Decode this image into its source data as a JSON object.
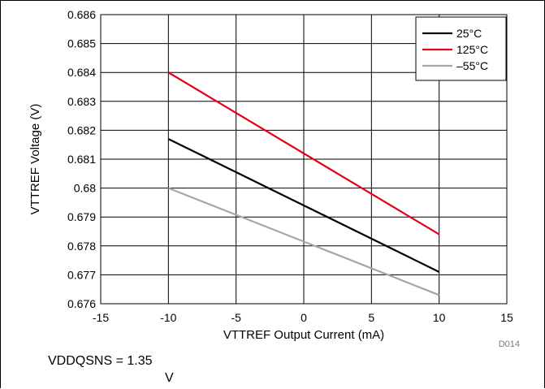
{
  "chart_data": {
    "type": "line",
    "xlabel": "VTTREF Output Current (mA)",
    "ylabel": "VTTREF Voltage (V)",
    "xlim": [
      -15,
      15
    ],
    "ylim": [
      0.676,
      0.686
    ],
    "x_ticks": [
      "-15",
      "-10",
      "-5",
      "0",
      "5",
      "10",
      "15"
    ],
    "y_ticks": [
      "0.676",
      "0.677",
      "0.678",
      "0.679",
      "0.68",
      "0.681",
      "0.682",
      "0.683",
      "0.684",
      "0.685",
      "0.686"
    ],
    "grid": true,
    "legend_position": "top-right",
    "series": [
      {
        "name": "25°C",
        "color": "#000000",
        "x": [
          -10,
          10
        ],
        "y": [
          0.6817,
          0.6771
        ]
      },
      {
        "name": "125°C",
        "color": "#e4001b",
        "x": [
          -10,
          10
        ],
        "y": [
          0.684,
          0.6784
        ]
      },
      {
        "name": "–55°C",
        "color": "#a6a6a6",
        "x": [
          -10,
          10
        ],
        "y": [
          0.68,
          0.6763
        ]
      }
    ],
    "figure_code": "D014"
  },
  "notes": {
    "condition_line1": "VDDQSNS = 1.35",
    "condition_line2": "V"
  }
}
